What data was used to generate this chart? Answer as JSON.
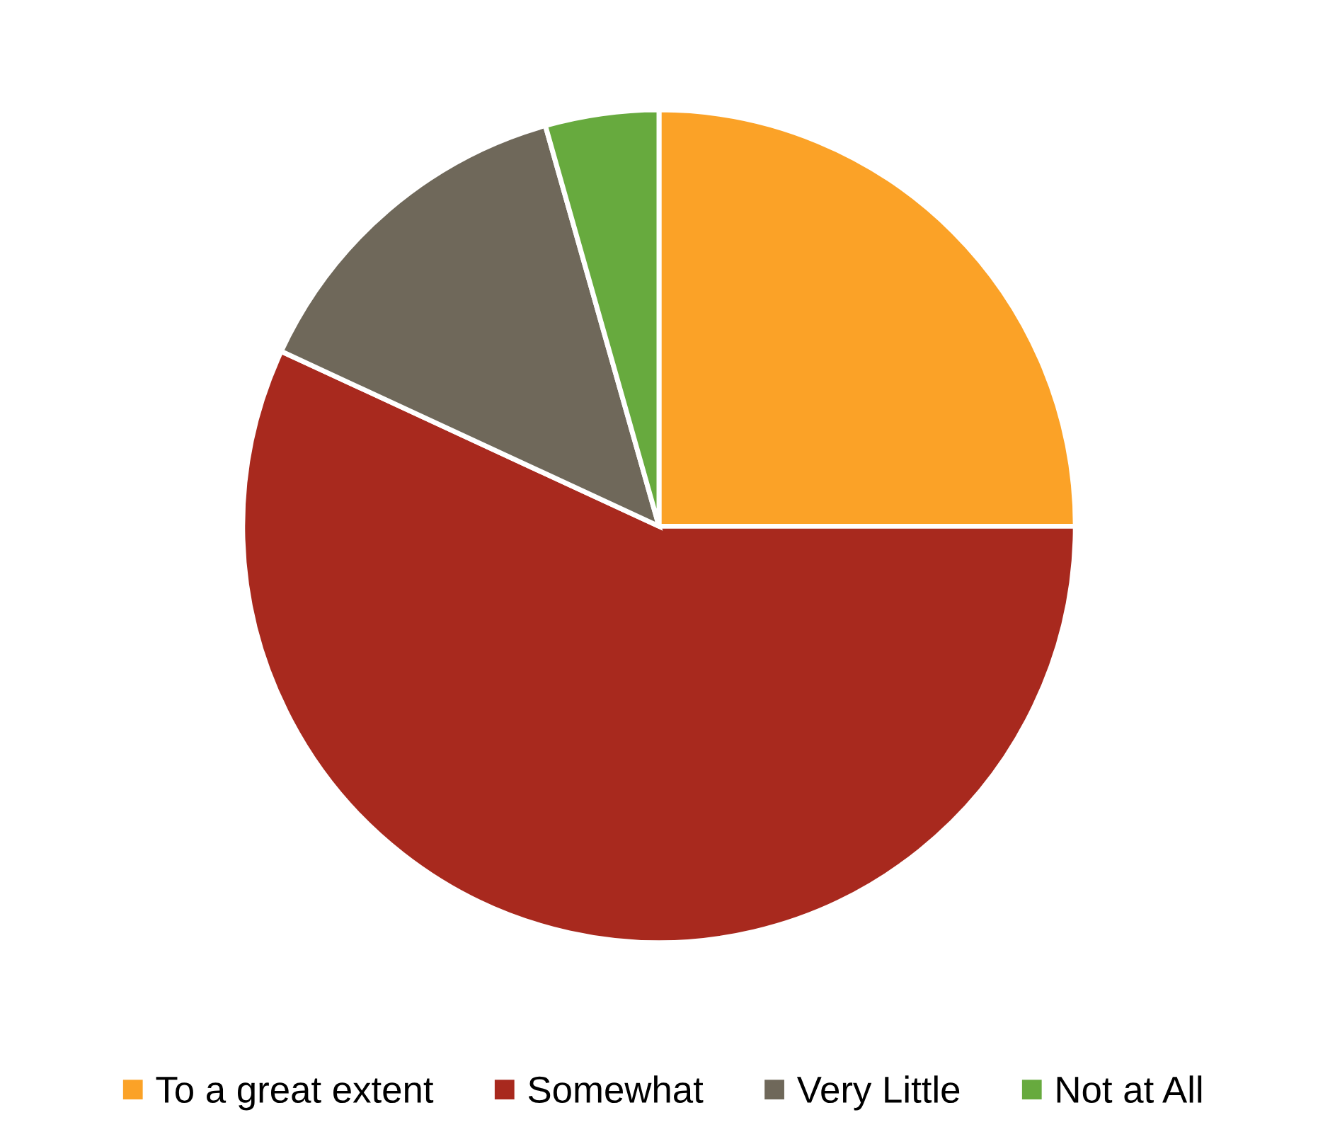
{
  "chart_data": {
    "type": "pie",
    "categories": [
      "To a great extent",
      "Somewhat",
      "Very Little",
      "Not at All"
    ],
    "values": [
      25,
      56.9,
      13.7,
      4.4
    ],
    "colors": [
      "#fba227",
      "#a8291e",
      "#6f685a",
      "#67aa3e"
    ],
    "legend": "bottom"
  }
}
